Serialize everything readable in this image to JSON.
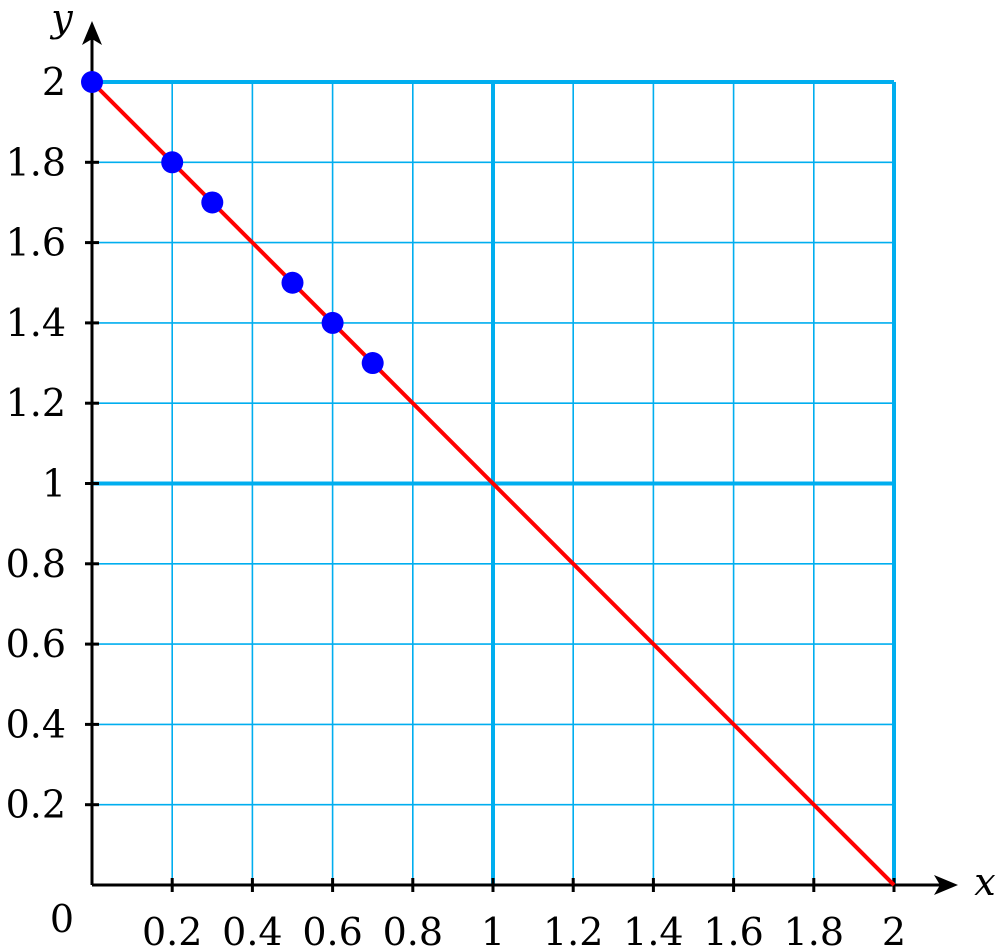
{
  "chart_data": {
    "type": "scatter",
    "xlabel": "x",
    "ylabel": "y",
    "origin_label": "0",
    "xlim": [
      0,
      2
    ],
    "ylim": [
      0,
      2
    ],
    "grid": true,
    "x_ticks": [
      0.2,
      0.4,
      0.6,
      0.8,
      1,
      1.2,
      1.4,
      1.6,
      1.8,
      2
    ],
    "y_ticks": [
      0.2,
      0.4,
      0.6,
      0.8,
      1,
      1.2,
      1.4,
      1.6,
      1.8,
      2
    ],
    "x_tick_labels": [
      "0.2",
      "0.4",
      "0.6",
      "0.8",
      "1",
      "1.2",
      "1.4",
      "1.6",
      "1.8",
      "2"
    ],
    "y_tick_labels": [
      "0.2",
      "0.4",
      "0.6",
      "0.8",
      "1",
      "1.2",
      "1.4",
      "1.6",
      "1.8",
      "2"
    ],
    "line": {
      "x": [
        0,
        2
      ],
      "y": [
        2,
        0
      ],
      "color": "#ff0000"
    },
    "points": {
      "x": [
        0,
        0.2,
        0.3,
        0.5,
        0.6,
        0.7
      ],
      "y": [
        2,
        1.8,
        1.7,
        1.5,
        1.4,
        1.3
      ],
      "color": "#0000ff"
    },
    "colors": {
      "grid": "#00aeef",
      "axis": "#000000"
    }
  }
}
